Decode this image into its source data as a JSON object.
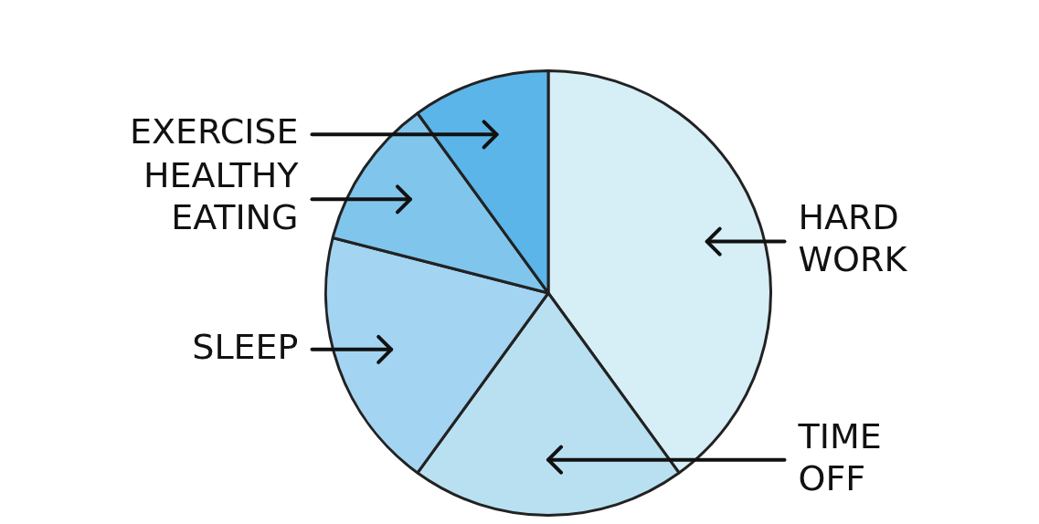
{
  "chart_data": {
    "type": "pie",
    "categories": [
      "HARD WORK",
      "TIME OFF",
      "SLEEP",
      "HEALTHY EATING",
      "EXERCISE"
    ],
    "values": [
      40,
      20,
      19,
      11,
      10
    ],
    "colors": [
      "#d6eef6",
      "#b8e0f0",
      "#a3d4f2",
      "#80c5ec",
      "#5bb5e8"
    ]
  }
}
